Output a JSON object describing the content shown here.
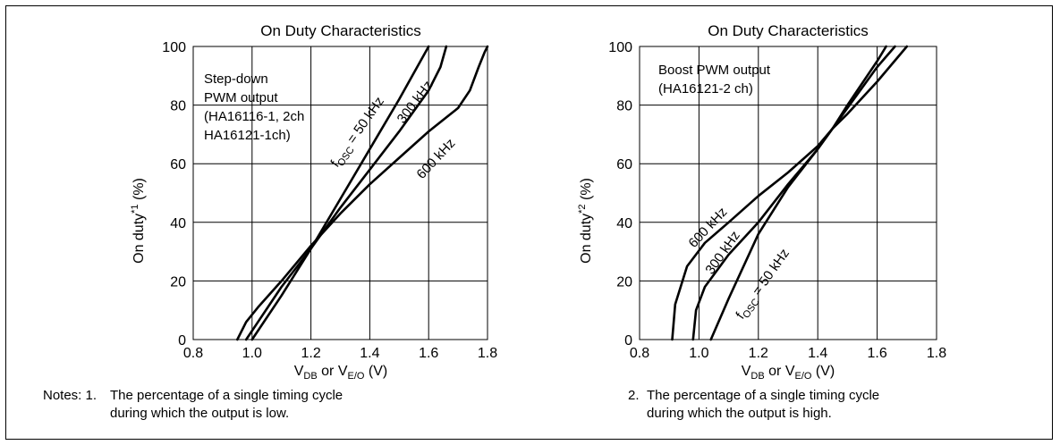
{
  "chart_data": [
    {
      "type": "line",
      "title": "On Duty Characteristics",
      "ylabel_main": "On duty",
      "ylabel_sup": "*1",
      "ylabel_unit": " (%)",
      "xlabel_parts": [
        "V",
        "DB",
        " or V",
        "E/O",
        " (V)"
      ],
      "xlim": [
        0.8,
        1.8
      ],
      "ylim": [
        0,
        100
      ],
      "xticks": [
        "0.8",
        "1.0",
        "1.2",
        "1.4",
        "1.6",
        "1.8"
      ],
      "yticks": [
        "0",
        "20",
        "40",
        "60",
        "80",
        "100"
      ],
      "grid": true,
      "annotation_lines": [
        "Step-down",
        "PWM output",
        "(HA16116-1, 2ch",
        "HA16121-1ch)"
      ],
      "series": [
        {
          "name_parts": [
            "f",
            "OSC",
            " = 50 kHz"
          ],
          "x": [
            1.0,
            1.1,
            1.2,
            1.3,
            1.4,
            1.5,
            1.6
          ],
          "y": [
            0,
            15,
            31,
            48,
            65,
            82,
            100
          ]
        },
        {
          "name_parts": [
            "300 kHz"
          ],
          "x": [
            0.98,
            1.02,
            1.1,
            1.2,
            1.3,
            1.4,
            1.5,
            1.6,
            1.64,
            1.66
          ],
          "y": [
            0,
            6,
            18,
            31,
            45,
            58,
            71,
            85,
            93,
            100
          ]
        },
        {
          "name_parts": [
            "600 kHz"
          ],
          "x": [
            0.95,
            0.98,
            1.02,
            1.1,
            1.2,
            1.3,
            1.4,
            1.5,
            1.6,
            1.7,
            1.74,
            1.77,
            1.79,
            1.8
          ],
          "y": [
            0,
            6,
            11,
            20,
            32,
            43,
            53,
            62,
            71,
            79,
            85,
            93,
            98,
            100
          ]
        }
      ]
    },
    {
      "type": "line",
      "title": "On Duty Characteristics",
      "ylabel_main": "On duty",
      "ylabel_sup": "*2",
      "ylabel_unit": " (%)",
      "xlabel_parts": [
        "V",
        "DB",
        " or V",
        "E/O",
        " (V)"
      ],
      "xlim": [
        0.8,
        1.8
      ],
      "ylim": [
        0,
        100
      ],
      "xticks": [
        "0.8",
        "1.0",
        "1.2",
        "1.4",
        "1.6",
        "1.8"
      ],
      "yticks": [
        "0",
        "20",
        "40",
        "60",
        "80",
        "100"
      ],
      "grid": true,
      "annotation_lines": [
        "Boost PWM output",
        "(HA16121-2 ch)"
      ],
      "series": [
        {
          "name_parts": [
            "f",
            "OSC",
            " = 50 kHz"
          ],
          "x": [
            1.04,
            1.1,
            1.2,
            1.3,
            1.4,
            1.45,
            1.5,
            1.6,
            1.63
          ],
          "y": [
            0,
            14,
            36,
            52,
            65,
            72,
            80,
            95,
            100
          ]
        },
        {
          "name_parts": [
            "300 kHz"
          ],
          "x": [
            0.98,
            0.99,
            1.02,
            1.1,
            1.2,
            1.3,
            1.4,
            1.45,
            1.5,
            1.6,
            1.66
          ],
          "y": [
            0,
            10,
            18,
            29,
            40,
            53,
            65,
            72,
            79,
            93,
            100
          ]
        },
        {
          "name_parts": [
            "600 kHz"
          ],
          "x": [
            0.91,
            0.92,
            0.96,
            1.02,
            1.1,
            1.2,
            1.3,
            1.4,
            1.45,
            1.5,
            1.6,
            1.7
          ],
          "y": [
            0,
            12,
            25,
            33,
            40,
            49,
            57,
            66,
            72,
            77,
            88,
            100
          ]
        }
      ]
    }
  ],
  "notes": {
    "left_prefix": "Notes: 1.",
    "left_line1": "The percentage of a single timing cycle",
    "left_line2": "during which the output is low.",
    "right_prefix": "2.",
    "right_line1": "The percentage of a single timing cycle",
    "right_line2": "during which the output is high."
  }
}
